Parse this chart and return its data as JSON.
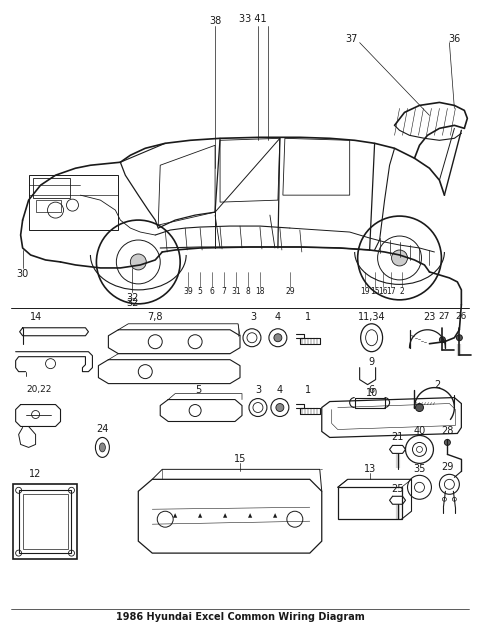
{
  "title": "1986 Hyundai Excel Common Wiring Diagram",
  "bg_color": "#ffffff",
  "line_color": "#1a1a1a",
  "fig_width": 4.8,
  "fig_height": 6.24,
  "dpi": 100
}
